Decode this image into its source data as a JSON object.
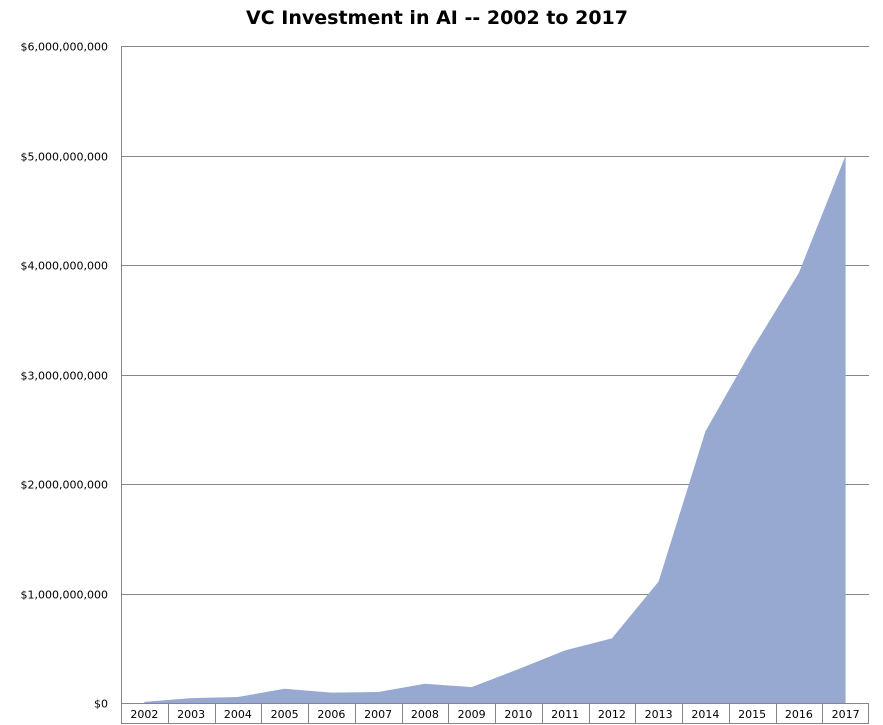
{
  "chart_data": {
    "type": "area",
    "title": "VC Investment in AI -- 2002 to 2017",
    "xlabel": "",
    "ylabel": "",
    "categories": [
      "2002",
      "2003",
      "2004",
      "2005",
      "2006",
      "2007",
      "2008",
      "2009",
      "2010",
      "2011",
      "2012",
      "2013",
      "2014",
      "2015",
      "2016",
      "2017"
    ],
    "values": [
      10000000,
      45000000,
      55000000,
      130000000,
      95000000,
      100000000,
      175000000,
      145000000,
      310000000,
      480000000,
      590000000,
      1110000000,
      2480000000,
      3230000000,
      3930000000,
      5000000000
    ],
    "ylim": [
      0,
      6000000000
    ],
    "yticks": [
      0,
      1000000000,
      2000000000,
      3000000000,
      4000000000,
      5000000000,
      6000000000
    ],
    "ytick_labels": [
      "$0",
      "$1,000,000,000",
      "$2,000,000,000",
      "$3,000,000,000",
      "$4,000,000,000",
      "$5,000,000,000",
      "$6,000,000,000"
    ],
    "grid": true,
    "legend": "none",
    "fill_color": "#97a9d1",
    "gridline_color": "#868686",
    "axis_color": "#868686"
  }
}
